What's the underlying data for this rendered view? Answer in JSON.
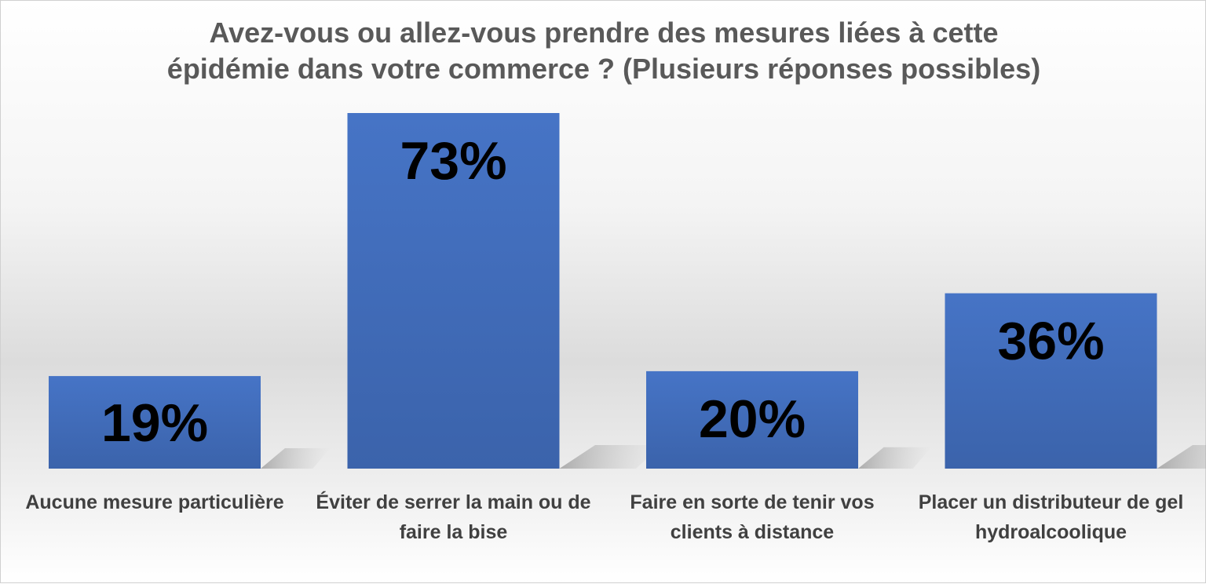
{
  "chart_data": {
    "type": "bar",
    "title_lines": [
      "Avez-vous ou allez-vous prendre des mesures liées à cette",
      "épidémie dans votre commerce ? (Plusieurs réponses possibles)"
    ],
    "categories": [
      "Aucune mesure particulière",
      "Éviter de serrer la main ou de faire la bise",
      "Faire en sorte de tenir vos clients à distance",
      "Placer un distributeur de gel hydroalcoolique"
    ],
    "values": [
      19,
      73,
      20,
      36
    ],
    "value_labels": [
      "19%",
      "73%",
      "20%",
      "36%"
    ],
    "ylim": [
      0,
      73
    ],
    "grid": false,
    "legend": "none",
    "colors": {
      "bar": "#4472c4",
      "bar_dark": "#3a62aa",
      "label": "#000000",
      "text": "#595959"
    }
  }
}
